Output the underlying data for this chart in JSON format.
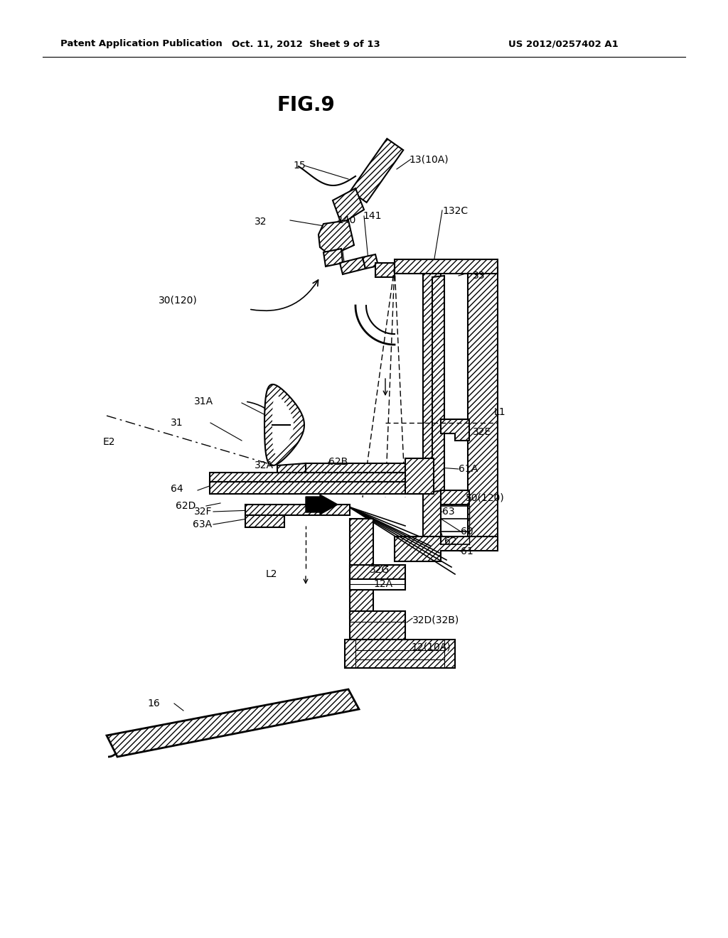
{
  "bg_color": "#ffffff",
  "header_left": "Patent Application Publication",
  "header_center": "Oct. 11, 2012  Sheet 9 of 13",
  "header_right": "US 2012/0257402 A1",
  "title": "FIG.9"
}
